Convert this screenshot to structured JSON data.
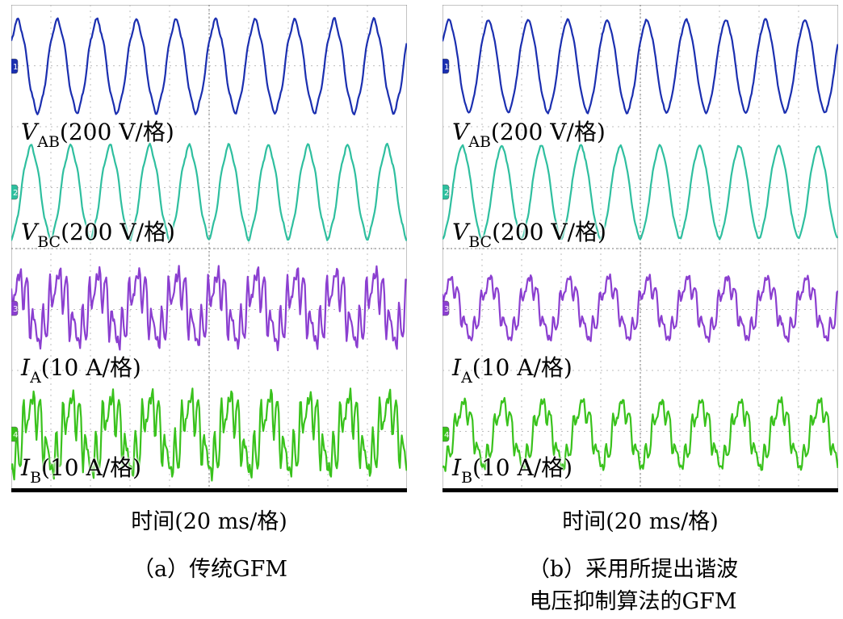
{
  "chart_data": [
    {
      "type": "line",
      "caption": "（a）传统GFM",
      "xlabel": "时间(20 ms/格)",
      "series": [
        {
          "name": "V_AB",
          "label_main": "V",
          "label_sub": "AB",
          "label_scale": "(200 V/格)",
          "color": "#1b2fb0",
          "channel": "1"
        },
        {
          "name": "V_BC",
          "label_main": "V",
          "label_sub": "BC",
          "label_scale": "(200 V/格)",
          "color": "#2fbf9f",
          "channel": "2"
        },
        {
          "name": "I_A",
          "label_main": "I",
          "label_sub": "A",
          "label_scale": "(10 A/格)",
          "color": "#8b3fd0",
          "channel": "3"
        },
        {
          "name": "I_B",
          "label_main": "I",
          "label_sub": "B",
          "label_scale": "(10 A/格)",
          "color": "#39c21c",
          "channel": "4"
        }
      ],
      "cycles_shown": 10,
      "harmonic_distortion": "high"
    },
    {
      "type": "line",
      "caption_line1": "（b）采用所提出谐波",
      "caption_line2": "电压抑制算法的GFM",
      "xlabel": "时间(20 ms/格)",
      "series": [
        {
          "name": "V_AB",
          "label_main": "V",
          "label_sub": "AB",
          "label_scale": "(200 V/格)",
          "color": "#1b2fb0",
          "channel": "1"
        },
        {
          "name": "V_BC",
          "label_main": "V",
          "label_sub": "BC",
          "label_scale": "(200 V/格)",
          "color": "#2fbf9f",
          "channel": "2"
        },
        {
          "name": "I_A",
          "label_main": "I",
          "label_sub": "A",
          "label_scale": "(10 A/格)",
          "color": "#8b3fd0",
          "channel": "3"
        },
        {
          "name": "I_B",
          "label_main": "I",
          "label_sub": "B",
          "label_scale": "(10 A/格)",
          "color": "#39c21c",
          "channel": "4"
        }
      ],
      "cycles_shown": 10,
      "harmonic_distortion": "low"
    }
  ]
}
